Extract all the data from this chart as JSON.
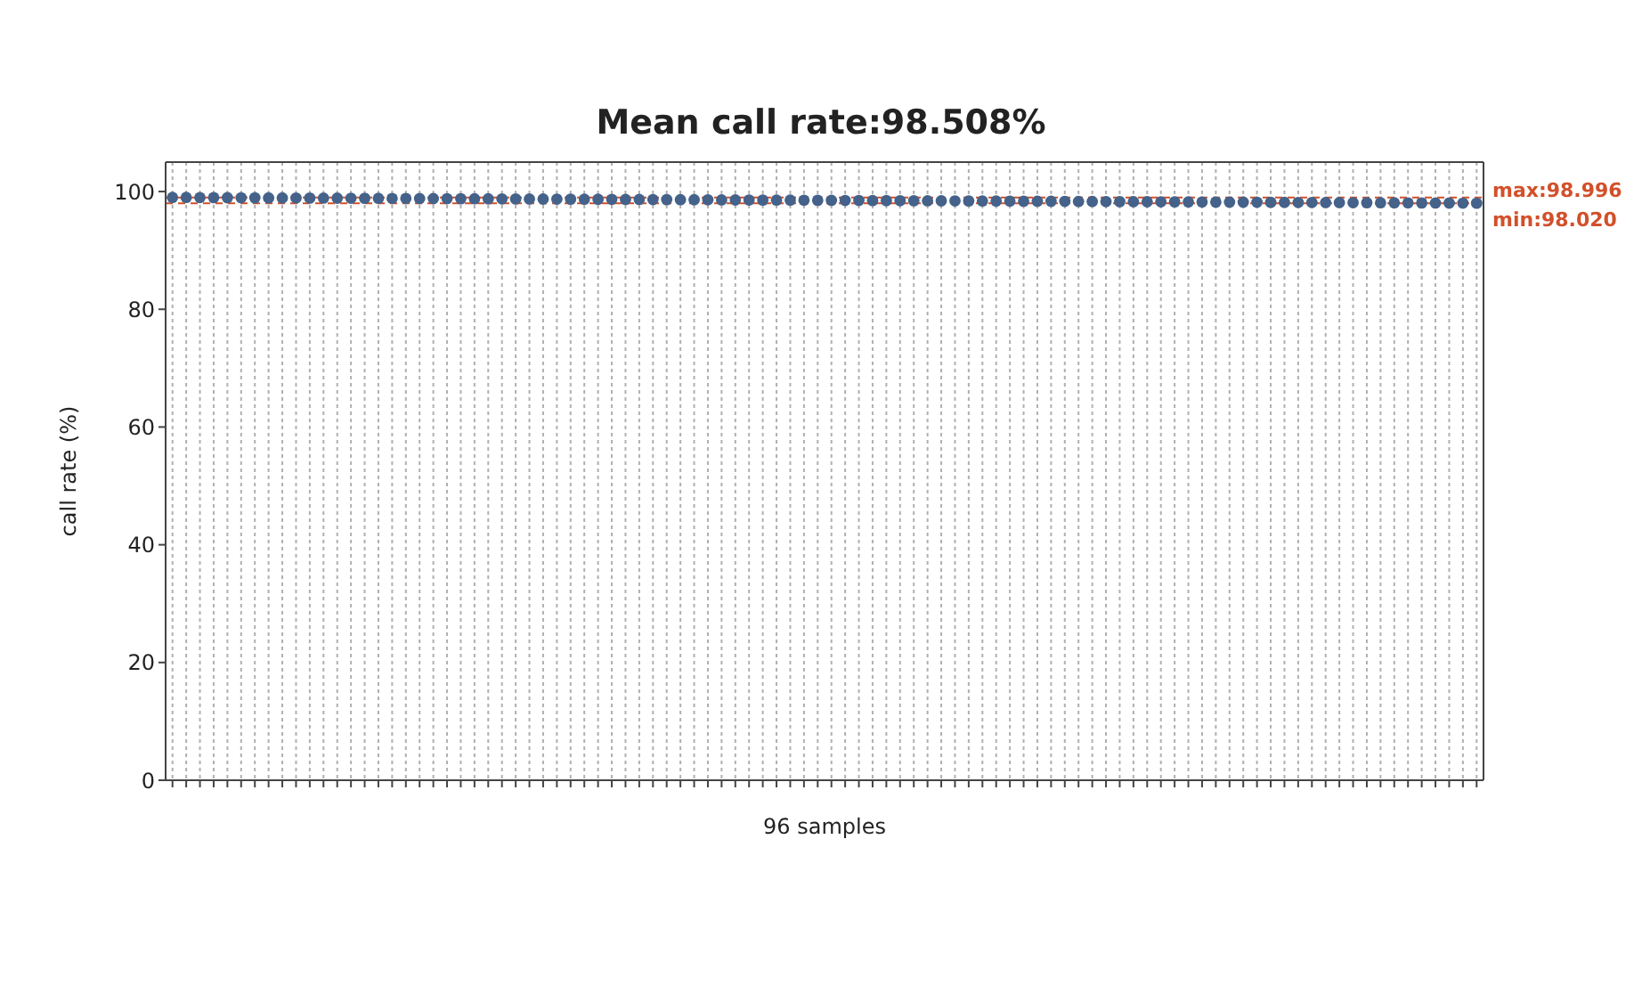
{
  "chart_data": {
    "type": "scatter",
    "title": "Mean call rate:98.508%",
    "xlabel": "96 samples",
    "ylabel": "call rate (%)",
    "categories": [
      null,
      null,
      null,
      null,
      null,
      null,
      null,
      null,
      null,
      null,
      null,
      null,
      null,
      null,
      null,
      null,
      null,
      null,
      null,
      null,
      null,
      null,
      null,
      null,
      null,
      null,
      null,
      null,
      null,
      null,
      null,
      null,
      null,
      null,
      null,
      null,
      null,
      null,
      null,
      null,
      null,
      null,
      null,
      null,
      null,
      null,
      null,
      null,
      null,
      null,
      null,
      null,
      null,
      null,
      null,
      null,
      null,
      null,
      null,
      null,
      null,
      null,
      null,
      null,
      null,
      null,
      null,
      null,
      null,
      null,
      null,
      null,
      null,
      null,
      null,
      null,
      null,
      null,
      null,
      null,
      null,
      null,
      null,
      null,
      null,
      null,
      null,
      null,
      null,
      null,
      null,
      null,
      null,
      null,
      null,
      null
    ],
    "series": [
      {
        "color": "#44628a",
        "values": [
          98.996,
          98.99,
          98.98,
          98.97,
          98.95,
          98.94,
          98.93,
          98.92,
          98.91,
          98.9,
          98.89,
          98.88,
          98.87,
          98.86,
          98.85,
          98.84,
          98.83,
          98.82,
          98.81,
          98.8,
          98.79,
          98.78,
          98.77,
          98.76,
          98.75,
          98.74,
          98.73,
          98.72,
          98.71,
          98.7,
          98.69,
          98.68,
          98.67,
          98.66,
          98.65,
          98.64,
          98.63,
          98.62,
          98.61,
          98.6,
          98.58,
          98.57,
          98.56,
          98.55,
          98.54,
          98.53,
          98.52,
          98.51,
          98.5,
          98.49,
          98.48,
          98.47,
          98.46,
          98.45,
          98.44,
          98.43,
          98.42,
          98.41,
          98.4,
          98.39,
          98.38,
          98.37,
          98.36,
          98.35,
          98.34,
          98.33,
          98.32,
          98.31,
          98.3,
          98.29,
          98.28,
          98.27,
          98.26,
          98.25,
          98.24,
          98.22,
          98.21,
          98.2,
          98.19,
          98.18,
          98.17,
          98.16,
          98.15,
          98.14,
          98.13,
          98.12,
          98.11,
          98.1,
          98.09,
          98.08,
          98.07,
          98.06,
          98.05,
          98.04,
          98.03,
          98.02
        ]
      }
    ],
    "ylim": [
      0,
      105
    ],
    "yticks": [
      0,
      20,
      40,
      60,
      80,
      100
    ],
    "grid": "x",
    "marker": "circle",
    "tick_labels": "y",
    "ref_lines": [
      {
        "axis": "y",
        "value": 98.996,
        "label": "max:98.996",
        "color": "#d2502a",
        "line_style": "dashed"
      },
      {
        "axis": "y",
        "value": 98.02,
        "label": "min:98.020",
        "color": "#d2502a",
        "line_style": "dashed"
      }
    ]
  }
}
